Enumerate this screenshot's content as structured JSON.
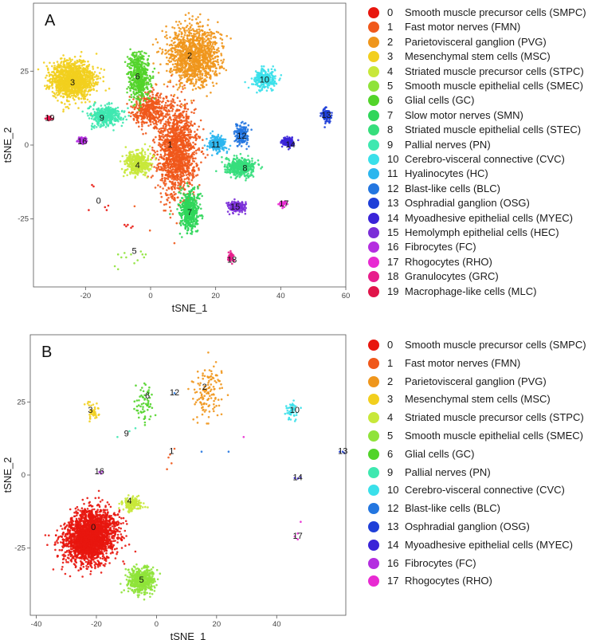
{
  "figure": {
    "clusters": [
      {
        "id": "0",
        "name": "Smooth muscle precursor cells (SMPC)",
        "color": "#e8160e"
      },
      {
        "id": "1",
        "name": "Fast motor nerves (FMN)",
        "color": "#f0581b"
      },
      {
        "id": "2",
        "name": "Parietovisceral ganglion (PVG)",
        "color": "#ef961c"
      },
      {
        "id": "3",
        "name": "Mesenchymal stem cells (MSC)",
        "color": "#f2cf1e"
      },
      {
        "id": "4",
        "name": "Striated muscle precursor cells (STPC)",
        "color": "#c8e83a"
      },
      {
        "id": "5",
        "name": "Smooth muscle epithelial cells (SMEC)",
        "color": "#8fe33a"
      },
      {
        "id": "6",
        "name": "Glial cells (GC)",
        "color": "#52d42a"
      },
      {
        "id": "7",
        "name": "Slow motor nerves (SMN)",
        "color": "#2fd65a"
      },
      {
        "id": "8",
        "name": "Striated muscle epithelial cells (STEC)",
        "color": "#36de7c"
      },
      {
        "id": "9",
        "name": "Pallial nerves (PN)",
        "color": "#3ee8b0"
      },
      {
        "id": "10",
        "name": "Cerebro-visceral connective (CVC)",
        "color": "#3ae0ea"
      },
      {
        "id": "11",
        "name": "Hyalinocytes (HC)",
        "color": "#2cb6ee"
      },
      {
        "id": "12",
        "name": "Blast-like cells (BLC)",
        "color": "#2376e0"
      },
      {
        "id": "13",
        "name": "Osphradial ganglion (OSG)",
        "color": "#1f3fd8"
      },
      {
        "id": "14",
        "name": "Myoadhesive epithelial cells (MYEC)",
        "color": "#3a24d8"
      },
      {
        "id": "15",
        "name": "Hemolymph epithelial cells (HEC)",
        "color": "#7a2ed8"
      },
      {
        "id": "16",
        "name": "Fibrocytes (FC)",
        "color": "#b42ee0"
      },
      {
        "id": "17",
        "name": "Rhogocytes (RHO)",
        "color": "#e82ad2"
      },
      {
        "id": "18",
        "name": "Granulocytes (GRC)",
        "color": "#e81e8c"
      },
      {
        "id": "19",
        "name": "Macrophage-like cells (MLC)",
        "color": "#e0144a"
      }
    ]
  },
  "chart_data": [
    {
      "type": "scatter",
      "panel": "A",
      "xlabel": "tSNE_1",
      "ylabel": "tSNE_2",
      "xlim": [
        -36,
        60
      ],
      "ylim": [
        -48,
        48
      ],
      "xticks": [
        -20,
        0,
        20,
        40,
        60
      ],
      "yticks": [
        -25,
        0,
        25
      ],
      "legend_ids": [
        "0",
        "1",
        "2",
        "3",
        "4",
        "5",
        "6",
        "7",
        "8",
        "9",
        "10",
        "11",
        "12",
        "13",
        "14",
        "15",
        "16",
        "17",
        "18",
        "19"
      ],
      "clusters": [
        {
          "id": "0",
          "label_x": -16,
          "label_y": -19,
          "shape": "sparse",
          "points": [
            [
              -17.5,
              -14
            ],
            [
              -18,
              -13.5
            ],
            [
              -14,
              -21
            ],
            [
              -13.5,
              -22
            ],
            [
              -13,
              -20.5
            ],
            [
              -8,
              -27
            ],
            [
              -7.5,
              -27.5
            ],
            [
              -7,
              -27
            ],
            [
              -6,
              -28
            ],
            [
              -5.5,
              -27.5
            ],
            [
              -19,
              -22
            ]
          ]
        },
        {
          "id": "1",
          "label_x": 6,
          "label_y": 0,
          "shape": "blob",
          "cx": 8,
          "cy": -2,
          "sx": 5.5,
          "sy": 14,
          "n": 1400
        },
        {
          "id": "1b",
          "color_of": "1",
          "shape": "blob",
          "cx": 0,
          "cy": 12,
          "sx": 5,
          "sy": 5,
          "n": 400
        },
        {
          "id": "2",
          "label_x": 12,
          "label_y": 30,
          "shape": "blob",
          "cx": 13,
          "cy": 30,
          "sx": 7,
          "sy": 9,
          "n": 1200
        },
        {
          "id": "3",
          "label_x": -24,
          "label_y": 21,
          "shape": "blob",
          "cx": -24,
          "cy": 22,
          "sx": 6,
          "sy": 5.5,
          "n": 1300
        },
        {
          "id": "4",
          "label_x": -4,
          "label_y": -7,
          "shape": "blob",
          "cx": -4,
          "cy": -6,
          "sx": 3.5,
          "sy": 3.5,
          "n": 400
        },
        {
          "id": "5",
          "label_x": -5,
          "label_y": -36,
          "shape": "sparse",
          "points": [
            [
              -10,
              -37
            ],
            [
              -9,
              -38
            ],
            [
              -8,
              -36.5
            ],
            [
              -7.5,
              -38
            ],
            [
              -6,
              -37
            ],
            [
              -11,
              -41
            ],
            [
              -10,
              -42
            ],
            [
              -3,
              -36
            ],
            [
              -2.5,
              -37
            ],
            [
              -2,
              -38
            ],
            [
              -4,
              -39
            ],
            [
              -5,
              -40
            ],
            [
              -1.5,
              -37
            ]
          ]
        },
        {
          "id": "6",
          "label_x": -4,
          "label_y": 23,
          "shape": "blob",
          "cx": -3.5,
          "cy": 23,
          "sx": 2.8,
          "sy": 7,
          "n": 500
        },
        {
          "id": "7",
          "label_x": 12,
          "label_y": -23,
          "shape": "blob",
          "cx": 12,
          "cy": -22,
          "sx": 2.6,
          "sy": 6,
          "n": 500
        },
        {
          "id": "8",
          "label_x": 29,
          "label_y": -8,
          "shape": "blob",
          "cx": 27.5,
          "cy": -7.5,
          "sx": 4,
          "sy": 2.6,
          "n": 450
        },
        {
          "id": "9",
          "label_x": -15,
          "label_y": 9,
          "shape": "blob",
          "cx": -14,
          "cy": 10,
          "sx": 4,
          "sy": 3,
          "n": 450
        },
        {
          "id": "10",
          "label_x": 35,
          "label_y": 22,
          "shape": "blob",
          "cx": 35,
          "cy": 22,
          "sx": 3.3,
          "sy": 3.2,
          "n": 250
        },
        {
          "id": "11",
          "label_x": 20,
          "label_y": 0,
          "shape": "blob",
          "cx": 20.5,
          "cy": 0.5,
          "sx": 2.6,
          "sy": 2.4,
          "n": 220
        },
        {
          "id": "12",
          "label_x": 28,
          "label_y": 3,
          "shape": "blob",
          "cx": 28,
          "cy": 3.5,
          "sx": 1.8,
          "sy": 3.5,
          "n": 170
        },
        {
          "id": "13",
          "label_x": 54,
          "label_y": 10,
          "shape": "blob",
          "cx": 54,
          "cy": 10,
          "sx": 1.2,
          "sy": 2.2,
          "n": 100
        },
        {
          "id": "14",
          "label_x": 43,
          "label_y": 0,
          "shape": "blob",
          "cx": 42,
          "cy": 1,
          "sx": 1.8,
          "sy": 1.6,
          "n": 130
        },
        {
          "id": "15",
          "label_x": 26,
          "label_y": -21,
          "shape": "blob",
          "cx": 26.5,
          "cy": -21,
          "sx": 2.6,
          "sy": 1.8,
          "n": 150
        },
        {
          "id": "16",
          "label_x": -21,
          "label_y": 1,
          "shape": "blob",
          "cx": -21,
          "cy": 1.5,
          "sx": 1.2,
          "sy": 1.1,
          "n": 60
        },
        {
          "id": "17",
          "label_x": 41,
          "label_y": -20,
          "shape": "blob",
          "cx": 40.5,
          "cy": -20,
          "sx": 1.1,
          "sy": 0.9,
          "n": 40
        },
        {
          "id": "18",
          "label_x": 25,
          "label_y": -39,
          "shape": "blob",
          "cx": 24.5,
          "cy": -38,
          "sx": 0.8,
          "sy": 1.5,
          "n": 40
        },
        {
          "id": "19",
          "label_x": -31,
          "label_y": 9,
          "shape": "blob",
          "cx": -31,
          "cy": 9,
          "sx": 0.8,
          "sy": 0.6,
          "n": 25
        }
      ]
    },
    {
      "type": "scatter",
      "panel": "B",
      "xlabel": "tSNE_1",
      "ylabel": "tSNE_2",
      "xlim": [
        -42,
        63
      ],
      "ylim": [
        -48,
        48
      ],
      "xticks": [
        -40,
        -20,
        0,
        20,
        40
      ],
      "yticks": [
        -25,
        0,
        25
      ],
      "legend_ids": [
        "0",
        "1",
        "2",
        "3",
        "4",
        "5",
        "6",
        "9",
        "10",
        "12",
        "13",
        "14",
        "16",
        "17"
      ],
      "clusters": [
        {
          "id": "0",
          "label_x": -21,
          "label_y": -18,
          "shape": "blob",
          "cx": -22,
          "cy": -21,
          "sx": 7,
          "sy": 8.5,
          "n": 2400,
          "rot": -0.6
        },
        {
          "id": "1",
          "label_x": 5,
          "label_y": 8,
          "shape": "sparse",
          "points": [
            [
              4,
              6
            ],
            [
              5,
              4
            ],
            [
              6,
              9
            ],
            [
              3.5,
              2
            ],
            [
              4.5,
              7
            ]
          ]
        },
        {
          "id": "2",
          "label_x": 16,
          "label_y": 30,
          "shape": "blob",
          "cx": 17,
          "cy": 28,
          "sx": 4.5,
          "sy": 8,
          "n": 130
        },
        {
          "id": "3",
          "label_x": -22,
          "label_y": 22,
          "shape": "blob",
          "cx": -21,
          "cy": 22,
          "sx": 1.8,
          "sy": 3,
          "n": 40
        },
        {
          "id": "4",
          "label_x": -9,
          "label_y": -9,
          "shape": "blob",
          "cx": -8,
          "cy": -10,
          "sx": 3,
          "sy": 2,
          "n": 170
        },
        {
          "id": "5",
          "label_x": -5,
          "label_y": -36,
          "shape": "blob",
          "cx": -5,
          "cy": -36,
          "sx": 4,
          "sy": 4,
          "n": 520
        },
        {
          "id": "6",
          "label_x": -3,
          "label_y": 27,
          "shape": "blob",
          "cx": -4,
          "cy": 25,
          "sx": 2.8,
          "sy": 6,
          "n": 60
        },
        {
          "id": "9",
          "label_x": -10,
          "label_y": 14,
          "shape": "sparse",
          "points": [
            [
              -9,
              15
            ],
            [
              -7,
              16
            ],
            [
              -13,
              13
            ]
          ]
        },
        {
          "id": "10",
          "label_x": 46,
          "label_y": 22,
          "shape": "blob",
          "cx": 45,
          "cy": 22,
          "sx": 1.8,
          "sy": 2.5,
          "n": 50
        },
        {
          "id": "12",
          "label_x": 6,
          "label_y": 28,
          "shape": "sparse",
          "points": [
            [
              6,
              28
            ],
            [
              15,
              8
            ],
            [
              24,
              8
            ]
          ]
        },
        {
          "id": "13",
          "label_x": 62,
          "label_y": 8,
          "shape": "sparse",
          "points": [
            [
              62,
              8
            ],
            [
              61,
              8
            ],
            [
              62.5,
              7.5
            ]
          ]
        },
        {
          "id": "14",
          "label_x": 47,
          "label_y": -1,
          "shape": "sparse",
          "points": [
            [
              46,
              -1
            ],
            [
              47,
              -1.2
            ],
            [
              48,
              -0.8
            ]
          ]
        },
        {
          "id": "16",
          "label_x": -19,
          "label_y": 1,
          "shape": "sparse",
          "points": [
            [
              -19,
              1
            ],
            [
              -18.5,
              0.5
            ],
            [
              -18,
              1.2
            ]
          ]
        },
        {
          "id": "17",
          "label_x": 47,
          "label_y": -21,
          "shape": "sparse",
          "points": [
            [
              46,
              -21
            ],
            [
              47,
              -20
            ],
            [
              48,
              -16
            ],
            [
              47,
              -22
            ],
            [
              29,
              13
            ]
          ]
        }
      ]
    }
  ]
}
